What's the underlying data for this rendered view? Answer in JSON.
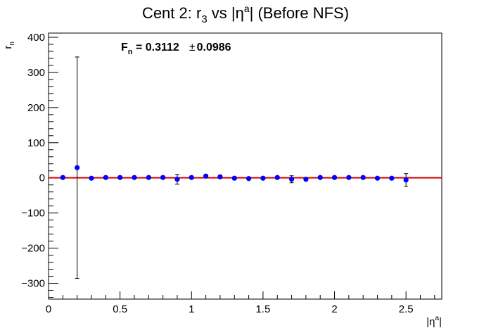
{
  "chart_data": {
    "type": "scatter",
    "title": {
      "prefix": "Cent 2: r",
      "sub": "3",
      "middle": " vs |η",
      "sup": "a",
      "suffix": "| (Before NFS)"
    },
    "ylabel": {
      "base": "r",
      "sub": "n"
    },
    "xlabel": {
      "base": "|η",
      "sup": "a",
      "suffix": "|"
    },
    "annotation": {
      "label_base": "F",
      "label_sub": "n",
      "value": " = 0.3112",
      "pm": "±",
      "error": "0.0986"
    },
    "xlim": [
      0,
      2.75
    ],
    "ylim": [
      -345,
      412
    ],
    "x_ticks": [
      0,
      0.5,
      1,
      1.5,
      2,
      2.5
    ],
    "x_tick_labels": [
      "0",
      "0.5",
      "1",
      "1.5",
      "2",
      "2.5"
    ],
    "y_ticks": [
      -300,
      -200,
      -100,
      0,
      100,
      200,
      300,
      400
    ],
    "y_tick_labels": [
      "−300",
      "−200",
      "−100",
      "0",
      "100",
      "200",
      "300",
      "400"
    ],
    "points": [
      {
        "x": 0.1,
        "y": 1,
        "err": 3
      },
      {
        "x": 0.2,
        "y": 29,
        "err": 315
      },
      {
        "x": 0.3,
        "y": -1,
        "err": 3
      },
      {
        "x": 0.4,
        "y": 1,
        "err": 3
      },
      {
        "x": 0.5,
        "y": 1,
        "err": 3
      },
      {
        "x": 0.6,
        "y": 1,
        "err": 3
      },
      {
        "x": 0.7,
        "y": 1,
        "err": 3
      },
      {
        "x": 0.8,
        "y": 1,
        "err": 3
      },
      {
        "x": 0.9,
        "y": -4,
        "err": 14
      },
      {
        "x": 1.0,
        "y": 1,
        "err": 3
      },
      {
        "x": 1.1,
        "y": 5,
        "err": 3
      },
      {
        "x": 1.2,
        "y": 3,
        "err": 3
      },
      {
        "x": 1.3,
        "y": -1,
        "err": 3
      },
      {
        "x": 1.4,
        "y": -2,
        "err": 3
      },
      {
        "x": 1.5,
        "y": -1,
        "err": 3
      },
      {
        "x": 1.6,
        "y": 1,
        "err": 3
      },
      {
        "x": 1.7,
        "y": -4,
        "err": 10
      },
      {
        "x": 1.8,
        "y": -4,
        "err": 3
      },
      {
        "x": 1.9,
        "y": 1,
        "err": 3
      },
      {
        "x": 2.0,
        "y": 1,
        "err": 3
      },
      {
        "x": 2.1,
        "y": 1,
        "err": 3
      },
      {
        "x": 2.2,
        "y": 1,
        "err": 3
      },
      {
        "x": 2.3,
        "y": -1,
        "err": 3
      },
      {
        "x": 2.4,
        "y": -1,
        "err": 3
      },
      {
        "x": 2.5,
        "y": -6,
        "err": 18
      }
    ],
    "fit_line": {
      "y": 0.3112,
      "x_range": [
        0,
        2.75
      ]
    },
    "colors": {
      "marker": "#0000ff",
      "fit": "#d40000",
      "axis": "#000000"
    }
  }
}
